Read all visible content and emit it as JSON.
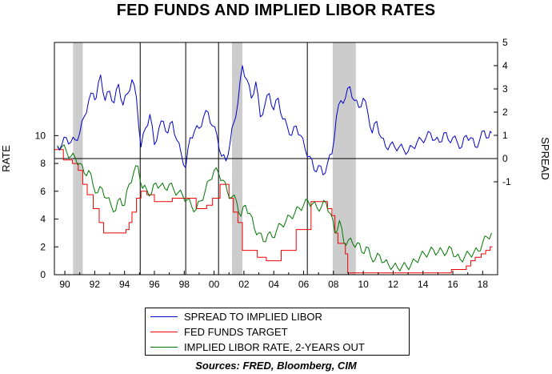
{
  "chart_data": {
    "type": "line",
    "title": "FED FUNDS AND IMPLIED LIBOR RATES",
    "source": "Sources:  FRED, Bloomberg, CIM",
    "left_axis": {
      "label": "RATE",
      "range": [
        0,
        16.7
      ],
      "ticks": [
        0,
        2,
        4,
        6,
        8,
        10
      ]
    },
    "right_axis": {
      "label": "SPREAD",
      "range": [
        -5,
        5
      ],
      "ticks": [
        -1,
        0,
        1,
        2,
        3,
        4,
        5
      ]
    },
    "x_axis": {
      "range": [
        1989.3,
        2019.0
      ],
      "ticks": [
        1990,
        1992,
        1994,
        1996,
        1998,
        2000,
        2002,
        2004,
        2006,
        2008,
        2010,
        2012,
        2014,
        2016,
        2018
      ],
      "tick_labels": [
        "90",
        "92",
        "94",
        "96",
        "98",
        "00",
        "02",
        "04",
        "06",
        "08",
        "10",
        "12",
        "14",
        "16",
        "18"
      ]
    },
    "recessions": [
      [
        1990.55,
        1991.2
      ],
      [
        2001.2,
        2001.9
      ],
      [
        2007.95,
        2009.5
      ]
    ],
    "vertical_lines": [
      1995.05,
      1998.1,
      2000.3,
      2006.25
    ],
    "zero_line": 0,
    "grid": false,
    "legend_position": "bottom-center",
    "series": [
      {
        "name": "SPREAD TO IMPLIED LIBOR",
        "color": "#0000cc",
        "axis": "right",
        "x": [
          1989.5,
          1989.8,
          1990.1,
          1990.4,
          1990.7,
          1991.0,
          1991.3,
          1991.6,
          1991.9,
          1992.1,
          1992.4,
          1992.7,
          1993.0,
          1993.3,
          1993.6,
          1993.9,
          1994.2,
          1994.5,
          1994.8,
          1995.1,
          1995.4,
          1995.7,
          1996.0,
          1996.3,
          1996.6,
          1996.9,
          1997.2,
          1997.5,
          1997.8,
          1998.1,
          1998.4,
          1998.7,
          1999.0,
          1999.3,
          1999.6,
          1999.9,
          2000.2,
          2000.5,
          2000.8,
          2001.1,
          2001.3,
          2001.6,
          2001.9,
          2002.2,
          2002.5,
          2002.8,
          2003.1,
          2003.4,
          2003.7,
          2004.0,
          2004.3,
          2004.6,
          2004.9,
          2005.2,
          2005.5,
          2005.8,
          2006.1,
          2006.4,
          2006.7,
          2007.0,
          2007.3,
          2007.6,
          2007.9,
          2008.2,
          2008.5,
          2008.8,
          2009.1,
          2009.4,
          2009.7,
          2010.0,
          2010.3,
          2010.6,
          2010.9,
          2011.2,
          2011.5,
          2011.8,
          2012.1,
          2012.4,
          2012.7,
          2013.0,
          2013.3,
          2013.6,
          2013.9,
          2014.2,
          2014.5,
          2014.8,
          2015.1,
          2015.4,
          2015.7,
          2016.0,
          2016.3,
          2016.6,
          2016.9,
          2017.2,
          2017.5,
          2017.8,
          2018.1,
          2018.4,
          2018.6
        ],
        "y": [
          0.5,
          0.6,
          0.9,
          0.7,
          0.8,
          1.1,
          1.8,
          2.5,
          2.8,
          2.6,
          3.6,
          2.5,
          2.9,
          2.4,
          3.2,
          2.3,
          2.8,
          3.4,
          2.6,
          0.5,
          1.3,
          1.9,
          0.6,
          1.3,
          1.6,
          1.1,
          1.6,
          0.8,
          0.2,
          -0.4,
          0.9,
          1.2,
          1.3,
          1.8,
          2.0,
          1.4,
          1.0,
          0.1,
          -0.1,
          0.8,
          1.5,
          2.4,
          4.0,
          3.4,
          2.6,
          3.3,
          1.8,
          2.3,
          2.8,
          2.1,
          2.6,
          1.7,
          1.4,
          1.0,
          1.4,
          1.0,
          0.4,
          0.1,
          -0.5,
          -0.3,
          -0.7,
          -0.2,
          0.2,
          1.8,
          2.5,
          2.6,
          3.1,
          2.5,
          2.2,
          2.6,
          2.0,
          1.1,
          1.6,
          0.9,
          0.5,
          0.6,
          0.5,
          0.5,
          0.4,
          0.3,
          0.5,
          0.7,
          0.8,
          0.9,
          1.1,
          0.8,
          0.7,
          1.1,
          0.8,
          0.9,
          0.7,
          0.5,
          1.0,
          0.9,
          0.5,
          0.8,
          1.2,
          0.9,
          1.1
        ]
      },
      {
        "name": "FED FUNDS TARGET",
        "color": "#ee0000",
        "axis": "left",
        "step": true,
        "x": [
          1989.3,
          1989.9,
          1990.5,
          1990.9,
          1991.2,
          1991.5,
          1991.9,
          1992.3,
          1992.6,
          1994.1,
          1994.3,
          1994.5,
          1994.8,
          1995.1,
          1995.5,
          1996.0,
          1997.2,
          1998.8,
          1999.5,
          1999.9,
          2000.4,
          2001.0,
          2001.3,
          2001.6,
          2001.9,
          2002.9,
          2003.5,
          2004.5,
          2005.5,
          2006.5,
          2007.6,
          2007.9,
          2008.1,
          2008.3,
          2008.8,
          2008.96,
          2015.9,
          2016.9,
          2017.2,
          2017.5,
          2017.9,
          2018.2,
          2018.5
        ],
        "y": [
          9.0,
          8.25,
          8.0,
          7.5,
          6.5,
          5.75,
          4.75,
          3.75,
          3.0,
          3.25,
          3.75,
          4.5,
          5.5,
          6.0,
          5.75,
          5.25,
          5.5,
          4.75,
          5.0,
          5.5,
          6.5,
          5.5,
          4.5,
          3.75,
          1.75,
          1.25,
          1.0,
          1.75,
          3.25,
          5.25,
          4.75,
          4.25,
          3.0,
          2.25,
          1.5,
          0.125,
          0.375,
          0.625,
          1.0,
          1.25,
          1.5,
          1.75,
          2.0
        ]
      },
      {
        "name": "IMPLIED LIBOR RATE, 2-YEARS OUT",
        "color": "#007700",
        "axis": "left",
        "x": [
          1989.5,
          1989.8,
          1990.1,
          1990.4,
          1990.7,
          1991.0,
          1991.3,
          1991.6,
          1991.9,
          1992.2,
          1992.5,
          1992.8,
          1993.1,
          1993.4,
          1993.7,
          1994.0,
          1994.3,
          1994.6,
          1994.9,
          1995.2,
          1995.5,
          1995.8,
          1996.1,
          1996.4,
          1996.7,
          1997.0,
          1997.3,
          1997.6,
          1997.9,
          1998.2,
          1998.5,
          1998.8,
          1999.1,
          1999.4,
          1999.7,
          2000.0,
          2000.3,
          2000.6,
          2000.9,
          2001.2,
          2001.5,
          2001.8,
          2002.1,
          2002.4,
          2002.7,
          2003.0,
          2003.3,
          2003.6,
          2003.9,
          2004.2,
          2004.5,
          2004.8,
          2005.1,
          2005.4,
          2005.7,
          2006.0,
          2006.3,
          2006.6,
          2006.9,
          2007.2,
          2007.5,
          2007.8,
          2008.1,
          2008.4,
          2008.7,
          2009.0,
          2009.3,
          2009.6,
          2009.9,
          2010.2,
          2010.5,
          2010.8,
          2011.1,
          2011.4,
          2011.7,
          2012.0,
          2012.3,
          2012.6,
          2012.9,
          2013.2,
          2013.5,
          2013.8,
          2014.1,
          2014.4,
          2014.7,
          2015.0,
          2015.3,
          2015.6,
          2015.9,
          2016.2,
          2016.5,
          2016.8,
          2017.1,
          2017.4,
          2017.7,
          2018.0,
          2018.3,
          2018.6
        ],
        "y": [
          9.3,
          9.2,
          8.9,
          8.5,
          8.4,
          8.0,
          7.3,
          7.5,
          6.4,
          5.9,
          6.2,
          5.5,
          5.0,
          4.6,
          5.5,
          5.0,
          6.5,
          7.3,
          7.8,
          6.2,
          6.1,
          5.8,
          6.6,
          6.4,
          6.2,
          6.5,
          6.1,
          5.9,
          5.7,
          5.4,
          4.9,
          4.7,
          5.3,
          6.0,
          6.8,
          7.5,
          7.3,
          6.8,
          5.9,
          5.6,
          5.3,
          4.2,
          5.0,
          4.4,
          3.3,
          3.0,
          2.4,
          2.9,
          2.7,
          3.2,
          3.6,
          3.8,
          4.2,
          4.4,
          4.8,
          5.0,
          5.3,
          5.1,
          4.8,
          4.9,
          5.2,
          4.4,
          3.0,
          3.9,
          2.3,
          2.5,
          2.2,
          2.3,
          1.6,
          2.0,
          1.3,
          1.1,
          1.4,
          0.9,
          0.7,
          0.6,
          0.5,
          0.6,
          0.6,
          0.7,
          1.0,
          1.3,
          1.5,
          1.6,
          1.8,
          1.6,
          1.7,
          1.6,
          1.9,
          1.3,
          1.1,
          1.3,
          1.5,
          1.6,
          1.7,
          2.3,
          2.7,
          3.0
        ]
      }
    ]
  }
}
